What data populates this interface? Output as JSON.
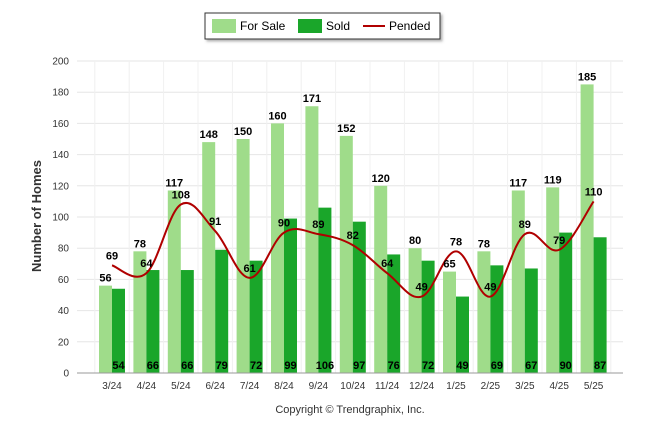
{
  "chart_data": {
    "type": "bar",
    "categories": [
      "3/24",
      "4/24",
      "5/24",
      "6/24",
      "7/24",
      "8/24",
      "9/24",
      "10/24",
      "11/24",
      "12/24",
      "1/25",
      "2/25",
      "3/25",
      "4/25",
      "5/25"
    ],
    "series": [
      {
        "name": "For Sale",
        "type": "bar",
        "color": "#9fdc8a",
        "values": [
          56,
          78,
          117,
          148,
          150,
          160,
          171,
          152,
          120,
          80,
          65,
          78,
          117,
          119,
          185
        ]
      },
      {
        "name": "Sold",
        "type": "bar",
        "color": "#1aa62a",
        "values": [
          54,
          66,
          66,
          79,
          72,
          99,
          106,
          97,
          76,
          72,
          49,
          69,
          67,
          90,
          87
        ]
      },
      {
        "name": "Pended",
        "type": "line",
        "color": "#b00000",
        "values": [
          69,
          64,
          108,
          91,
          61,
          90,
          89,
          82,
          64,
          49,
          78,
          49,
          89,
          79,
          110
        ]
      }
    ],
    "ylabel": "Number of Homes",
    "xlabel": "",
    "ylim": [
      0,
      200
    ],
    "yticks": [
      0,
      20,
      40,
      60,
      80,
      100,
      120,
      140,
      160,
      180,
      200
    ],
    "grid": true,
    "legend_position": "top-center",
    "footer": "Copyright © Trendgraphix, Inc."
  }
}
